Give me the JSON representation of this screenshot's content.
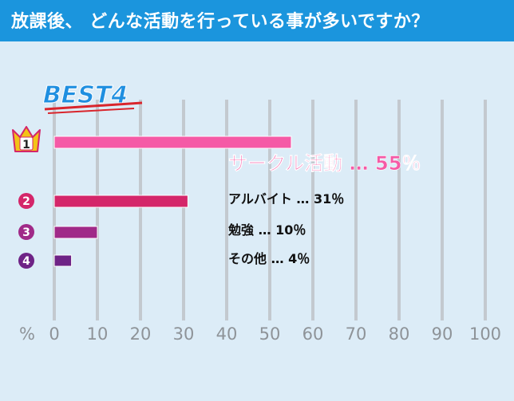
{
  "header": {
    "title": "放課後、 どんな活動を行っている事が多いですか？"
  },
  "badge": {
    "text": "BEST4"
  },
  "colors": {
    "header_bg": "#1b95dd",
    "background": "#dcecf7",
    "grid": "#c3c9cf",
    "axis_text": "#8e9398",
    "badge_blue": "#1f8fe0",
    "badge_underline": "#d9252c",
    "crown_gold": "#f3c316",
    "rank1": "#f55aa6",
    "rank2": "#d4266a",
    "rank3": "#a02a88",
    "rank4": "#6e2386"
  },
  "icons": {
    "rank1": "crown-icon"
  },
  "chart_data": {
    "type": "bar",
    "orientation": "horizontal",
    "title": "放課後、 どんな活動を行っている事が多いですか？",
    "xlabel": "%",
    "xlim": [
      0,
      100
    ],
    "xticks": [
      "0",
      "10",
      "20",
      "30",
      "40",
      "50",
      "60",
      "70",
      "80",
      "90",
      "100"
    ],
    "grid": true,
    "categories": [
      "サークル活動",
      "アルバイト",
      "勉強",
      "その他"
    ],
    "ranks": [
      "1",
      "2",
      "3",
      "4"
    ],
    "values": [
      55,
      31,
      10,
      4
    ],
    "labels": [
      "サークル活動 … 55％",
      "アルバイト … 31％",
      "勉強 … 10％",
      "その他 … 4％"
    ]
  }
}
